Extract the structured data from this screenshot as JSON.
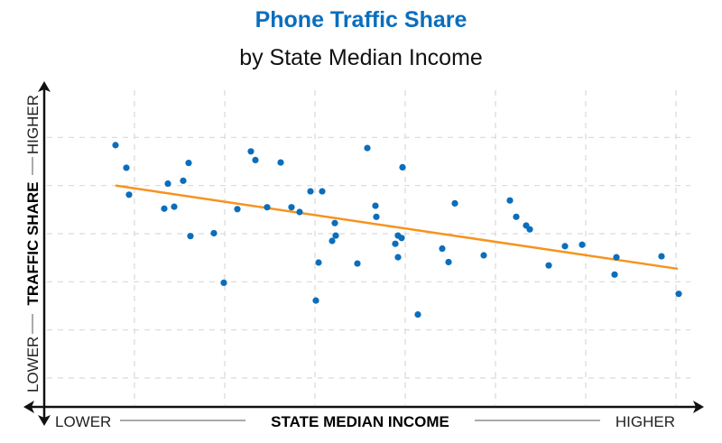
{
  "chart_data": {
    "type": "scatter",
    "title": "Phone Traffic Share",
    "subtitle": "by State Median Income",
    "xlabel": "STATE MEDIAN INCOME",
    "xlabel_low": "LOWER",
    "xlabel_high": "HIGHER",
    "ylabel": "TRAFFIC SHARE",
    "ylabel_low": "LOWER",
    "ylabel_high": "HIGHER",
    "xlim": [
      0,
      7.27
    ],
    "ylim": [
      0.4,
      7.15
    ],
    "grid": true,
    "tick_labels": "none",
    "colors": {
      "title": "#0a6ebd",
      "points": "#0a6ebd",
      "trend": "#f7931e",
      "grid": "#d9d9d9",
      "axis": "#111111"
    },
    "points": [
      [
        0.79,
        5.84
      ],
      [
        0.91,
        5.37
      ],
      [
        0.94,
        4.81
      ],
      [
        1.37,
        5.04
      ],
      [
        1.33,
        4.52
      ],
      [
        1.44,
        4.56
      ],
      [
        1.54,
        5.1
      ],
      [
        1.6,
        5.47
      ],
      [
        1.62,
        3.95
      ],
      [
        1.88,
        4.01
      ],
      [
        1.99,
        2.98
      ],
      [
        2.14,
        4.51
      ],
      [
        2.29,
        5.71
      ],
      [
        2.34,
        5.53
      ],
      [
        2.47,
        4.55
      ],
      [
        2.62,
        5.48
      ],
      [
        2.74,
        4.55
      ],
      [
        2.83,
        4.45
      ],
      [
        2.95,
        4.88
      ],
      [
        3.08,
        4.88
      ],
      [
        3.22,
        4.22
      ],
      [
        3.23,
        3.96
      ],
      [
        3.19,
        3.85
      ],
      [
        3.04,
        3.4
      ],
      [
        3.01,
        2.61
      ],
      [
        3.47,
        3.38
      ],
      [
        3.58,
        5.78
      ],
      [
        3.67,
        4.58
      ],
      [
        3.68,
        4.35
      ],
      [
        3.97,
        5.38
      ],
      [
        3.92,
        3.96
      ],
      [
        3.96,
        3.91
      ],
      [
        3.89,
        3.79
      ],
      [
        3.92,
        3.51
      ],
      [
        4.14,
        2.32
      ],
      [
        4.55,
        4.63
      ],
      [
        4.41,
        3.69
      ],
      [
        4.48,
        3.41
      ],
      [
        4.87,
        3.55
      ],
      [
        5.16,
        4.69
      ],
      [
        5.23,
        4.35
      ],
      [
        5.34,
        4.17
      ],
      [
        5.38,
        4.09
      ],
      [
        5.59,
        3.34
      ],
      [
        5.77,
        3.74
      ],
      [
        5.96,
        3.77
      ],
      [
        6.34,
        3.51
      ],
      [
        6.32,
        3.15
      ],
      [
        6.84,
        3.53
      ],
      [
        7.03,
        2.75
      ]
    ],
    "trendline": {
      "x": [
        0.79,
        7.02
      ],
      "y": [
        5.0,
        3.27
      ]
    }
  }
}
